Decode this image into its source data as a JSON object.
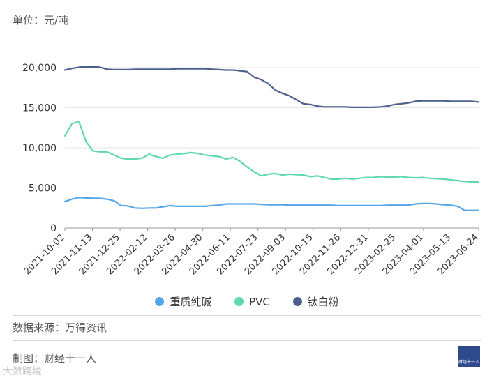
{
  "header": {
    "unit_label": "单位：元/吨"
  },
  "footer": {
    "source": "数据来源：万得资讯",
    "maker": "制图：财经十一人",
    "logo_text": "财经十一人",
    "watermark": "大数跨境"
  },
  "colors": {
    "soda_ash": "#55a6e8",
    "pvc": "#5fd8ab",
    "tio2": "#4d5f8c",
    "grid": "#e6e6e6",
    "axis": "#999999"
  },
  "chart_data": {
    "type": "line",
    "title": "",
    "xlabel": "",
    "ylabel": "",
    "ylim": [
      0,
      20000
    ],
    "yticks": [
      0,
      5000,
      10000,
      15000,
      20000
    ],
    "ytick_labels": [
      "0",
      "5,000",
      "10,000",
      "15,000",
      "20,000"
    ],
    "x_tick_labels": [
      "2021-10-02",
      "2021-11-13",
      "2021-12-25",
      "2022-02-12",
      "2022-03-26",
      "2022-04-30",
      "2022-06-11",
      "2022-07-23",
      "2022-09-03",
      "2022-10-15",
      "2022-11-26",
      "2022-12-31",
      "2023-02-25",
      "2023-04-01",
      "2023-05-13",
      "2023-06-24"
    ],
    "legend_position": "bottom",
    "grid": true,
    "series": [
      {
        "name": "重质纯碱",
        "color_key": "soda_ash",
        "values": [
          3300,
          3600,
          3800,
          3750,
          3700,
          3700,
          3600,
          3400,
          2800,
          2750,
          2500,
          2450,
          2500,
          2500,
          2650,
          2800,
          2700,
          2700,
          2700,
          2700,
          2700,
          2800,
          2850,
          3000,
          3000,
          3000,
          3000,
          3000,
          2950,
          2900,
          2900,
          2900,
          2850,
          2850,
          2850,
          2850,
          2850,
          2850,
          2850,
          2800,
          2800,
          2800,
          2800,
          2800,
          2800,
          2800,
          2850,
          2850,
          2850,
          2850,
          3000,
          3050,
          3050,
          3000,
          2900,
          2850,
          2700,
          2200,
          2200,
          2200
        ]
      },
      {
        "name": "PVC",
        "color_key": "pvc",
        "values": [
          11500,
          13000,
          13300,
          10800,
          9600,
          9500,
          9500,
          9100,
          8700,
          8600,
          8600,
          8700,
          9200,
          8900,
          8700,
          9100,
          9200,
          9300,
          9400,
          9300,
          9100,
          9000,
          8900,
          8600,
          8800,
          8300,
          7600,
          7000,
          6500,
          6700,
          6800,
          6600,
          6700,
          6650,
          6600,
          6400,
          6500,
          6300,
          6100,
          6100,
          6200,
          6100,
          6200,
          6300,
          6300,
          6400,
          6350,
          6350,
          6400,
          6300,
          6250,
          6300,
          6200,
          6150,
          6100,
          6000,
          5900,
          5800,
          5750,
          5700
        ]
      },
      {
        "name": "钛白粉",
        "color_key": "tio2",
        "values": [
          19700,
          19900,
          20050,
          20100,
          20100,
          20050,
          19800,
          19750,
          19750,
          19750,
          19800,
          19800,
          19800,
          19800,
          19800,
          19800,
          19850,
          19850,
          19850,
          19850,
          19850,
          19800,
          19750,
          19700,
          19700,
          19600,
          19500,
          18800,
          18500,
          18000,
          17200,
          16800,
          16500,
          16000,
          15500,
          15400,
          15200,
          15100,
          15100,
          15100,
          15100,
          15050,
          15050,
          15050,
          15050,
          15100,
          15200,
          15400,
          15500,
          15600,
          15800,
          15850,
          15850,
          15850,
          15850,
          15800,
          15800,
          15800,
          15800,
          15700
        ]
      }
    ]
  }
}
